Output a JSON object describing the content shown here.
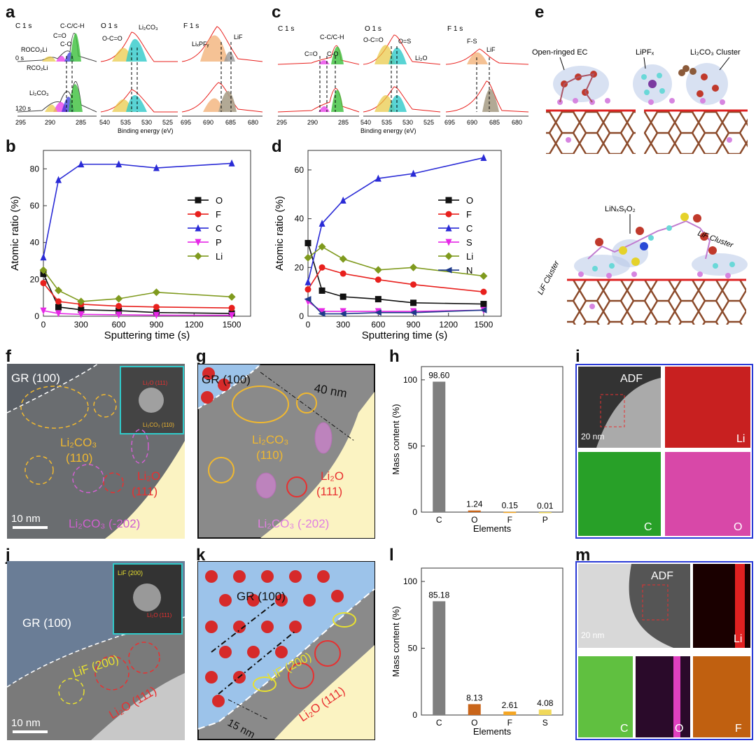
{
  "panels": {
    "a": {
      "label": "a",
      "groups": [
        {
          "title": "C 1 s",
          "peaks": [
            "C-C/C-H",
            "C=O",
            "C-O",
            "ROCO₂Li",
            "RCO₂Li",
            "Li₂CO₃"
          ],
          "axis_ticks": [
            "295",
            "290",
            "285"
          ],
          "times": [
            "0 s",
            "120 s"
          ]
        },
        {
          "title": "O 1 s",
          "peaks": [
            "Li₂CO₃",
            "O-C=O"
          ],
          "axis_ticks": [
            "540",
            "535",
            "530",
            "525"
          ]
        },
        {
          "title": "F 1 s",
          "peaks": [
            "LiₓPFᵧ",
            "LiF"
          ],
          "axis_ticks": [
            "695",
            "690",
            "685",
            "680"
          ]
        }
      ],
      "xlabel": "Binding energy (eV)"
    },
    "c": {
      "label": "c",
      "groups": [
        {
          "title": "C 1 s",
          "peaks": [
            "C-C/C-H",
            "C=O",
            "C-O"
          ],
          "axis_ticks": [
            "295",
            "290",
            "285"
          ]
        },
        {
          "title": "O 1 s",
          "peaks": [
            "O-C=O",
            "O=S",
            "Li₂O"
          ],
          "axis_ticks": [
            "540",
            "535",
            "530",
            "525"
          ]
        },
        {
          "title": "F 1 s",
          "peaks": [
            "F-S",
            "LiF"
          ],
          "axis_ticks": [
            "695",
            "690",
            "685",
            "680"
          ]
        }
      ],
      "xlabel": "Binding energy (eV)"
    },
    "e": {
      "label": "e",
      "labels": [
        "Open-ringed EC",
        "LiPFₓ",
        "Li₂CO₃ Cluster",
        "LiNₓSᵧO₂",
        "LiF Cluster",
        "LiF Cluster"
      ]
    },
    "b": {
      "label": "b"
    },
    "d": {
      "label": "d"
    },
    "f": {
      "label": "f",
      "labels": [
        "GR (100)",
        "Li₂CO₃",
        "(110)",
        "Li₂O",
        "(111)",
        "Li₂CO₃ (-202)",
        "10 nm",
        "Li₂CO₃ (110)",
        "Li₂O (111)"
      ]
    },
    "g": {
      "label": "g",
      "labels": [
        "GR (100)",
        "40 nm",
        "Li₂CO₃",
        "(110)",
        "Li₂O",
        "(111)",
        "Li₂CO₃ (-202)"
      ]
    },
    "h": {
      "label": "h"
    },
    "i": {
      "label": "i",
      "tiles": [
        "ADF",
        "Li",
        "C",
        "O"
      ],
      "scale": "20 nm"
    },
    "j": {
      "label": "j",
      "labels": [
        "GR (100)",
        "LiF (200)",
        "Li₂O (111)",
        "10 nm",
        "LiF (200)",
        "Li₂O (111)"
      ]
    },
    "k": {
      "label": "k",
      "labels": [
        "GR (100)",
        "LiF (200)",
        "Li₂O (111)",
        "15 nm"
      ]
    },
    "l": {
      "label": "l"
    },
    "m": {
      "label": "m",
      "tiles": [
        "ADF",
        "Li",
        "C",
        "O",
        "F"
      ],
      "scale": "20 nm"
    }
  },
  "chart_data": [
    {
      "id": "b",
      "type": "line",
      "xlabel": "Sputtering time (s)",
      "ylabel": "Atomic ratio (%)",
      "x": [
        0,
        120,
        300,
        600,
        900,
        1500
      ],
      "xticks": [
        0,
        300,
        600,
        900,
        1200,
        1500
      ],
      "yticks": [
        0,
        20,
        40,
        60,
        80
      ],
      "xlim": [
        0,
        1650
      ],
      "ylim": [
        0,
        90
      ],
      "legend": "center-right",
      "series": [
        {
          "name": "O",
          "color": "#111111",
          "marker": "square",
          "values": [
            23,
            5,
            3.5,
            3,
            2,
            1.5
          ]
        },
        {
          "name": "F",
          "color": "#e8201d",
          "marker": "circle",
          "values": [
            18,
            8,
            6.5,
            5.5,
            5,
            4.5
          ]
        },
        {
          "name": "C",
          "color": "#2a2bd6",
          "marker": "triangle-up",
          "values": [
            32,
            74,
            82.5,
            82.5,
            80.5,
            83
          ]
        },
        {
          "name": "P",
          "color": "#e629e6",
          "marker": "triangle-down",
          "values": [
            3,
            1.5,
            1,
            0.8,
            0.6,
            0.5
          ]
        },
        {
          "name": "Li",
          "color": "#7f9a1e",
          "marker": "diamond",
          "values": [
            25,
            14,
            8,
            9.5,
            13,
            10.5
          ]
        }
      ]
    },
    {
      "id": "d",
      "type": "line",
      "xlabel": "Sputtering time (s)",
      "ylabel": "Atomic ratio (%)",
      "x": [
        0,
        120,
        300,
        600,
        900,
        1500
      ],
      "xticks": [
        0,
        300,
        600,
        900,
        1200,
        1500
      ],
      "yticks": [
        0,
        20,
        40,
        60
      ],
      "xlim": [
        0,
        1650
      ],
      "ylim": [
        0,
        68
      ],
      "legend": "center-right",
      "series": [
        {
          "name": "O",
          "color": "#111111",
          "marker": "square",
          "values": [
            30,
            10.5,
            8,
            7,
            5.5,
            5
          ]
        },
        {
          "name": "F",
          "color": "#e8201d",
          "marker": "circle",
          "values": [
            11,
            20,
            17.5,
            15,
            13,
            10
          ]
        },
        {
          "name": "C",
          "color": "#2a2bd6",
          "marker": "triangle-up",
          "values": [
            14,
            38,
            47.5,
            56.5,
            58.5,
            65
          ]
        },
        {
          "name": "S",
          "color": "#e629e6",
          "marker": "triangle-down",
          "values": [
            6,
            2,
            2,
            2,
            2,
            2.5
          ]
        },
        {
          "name": "Li",
          "color": "#7f9a1e",
          "marker": "diamond",
          "values": [
            24,
            28.5,
            23.5,
            19,
            20,
            16.5
          ]
        },
        {
          "name": "N",
          "color": "#1e3a8a",
          "marker": "left",
          "values": [
            7,
            1,
            1,
            1.5,
            1.5,
            2.5
          ]
        }
      ]
    },
    {
      "id": "h",
      "type": "bar",
      "xlabel": "Elements",
      "ylabel": "Mass content (%)",
      "categories": [
        "C",
        "O",
        "F",
        "P"
      ],
      "values": [
        98.6,
        1.24,
        0.15,
        0.01
      ],
      "value_labels": [
        "98.60",
        "1.24",
        "0.15",
        "0.01"
      ],
      "colors": [
        "#7f7f7f",
        "#c9651a",
        "#f5a623",
        "#f0d85a"
      ],
      "yticks": [
        0,
        50,
        100
      ],
      "ylim": [
        0,
        110
      ]
    },
    {
      "id": "l",
      "type": "bar",
      "xlabel": "Elements",
      "ylabel": "Mass content (%)",
      "categories": [
        "C",
        "O",
        "F",
        "S"
      ],
      "values": [
        85.18,
        8.13,
        2.61,
        4.08
      ],
      "value_labels": [
        "85.18",
        "8.13",
        "2.61",
        "4.08"
      ],
      "colors": [
        "#7f7f7f",
        "#c9651a",
        "#f5a623",
        "#f0d85a"
      ],
      "yticks": [
        0,
        50,
        100
      ],
      "ylim": [
        0,
        110
      ]
    }
  ]
}
